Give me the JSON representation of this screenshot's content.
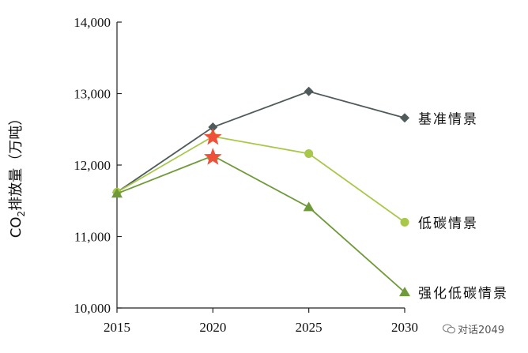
{
  "chart_data": {
    "type": "line",
    "x": [
      2015,
      2020,
      2025,
      2030
    ],
    "xticks": [
      "2015",
      "2020",
      "2025",
      "2030"
    ],
    "ylim": [
      10000,
      14000
    ],
    "yticks": [
      "10,000",
      "11,000",
      "12,000",
      "13,000",
      "14,000"
    ],
    "ytick_values": [
      10000,
      11000,
      12000,
      13000,
      14000
    ],
    "ylabel": "CO2排放量（万吨）",
    "grid": false,
    "series": [
      {
        "name": "基准情景",
        "values": [
          11620,
          12530,
          13030,
          12660
        ],
        "color": "#4f5b5b",
        "marker": "diamond"
      },
      {
        "name": "低碳情景",
        "values": [
          11620,
          12400,
          12160,
          11200
        ],
        "color": "#a8c84a",
        "marker": "circle"
      },
      {
        "name": "强化低碳情景",
        "values": [
          11600,
          12130,
          11410,
          10220
        ],
        "color": "#6f9a3a",
        "marker": "triangle"
      }
    ],
    "peaks": [
      {
        "x": 2020,
        "y": 12390,
        "color": "#f0503a",
        "marker": "star"
      },
      {
        "x": 2020,
        "y": 12110,
        "color": "#f0503a",
        "marker": "star"
      }
    ]
  },
  "watermark": {
    "text": "对话2049"
  }
}
